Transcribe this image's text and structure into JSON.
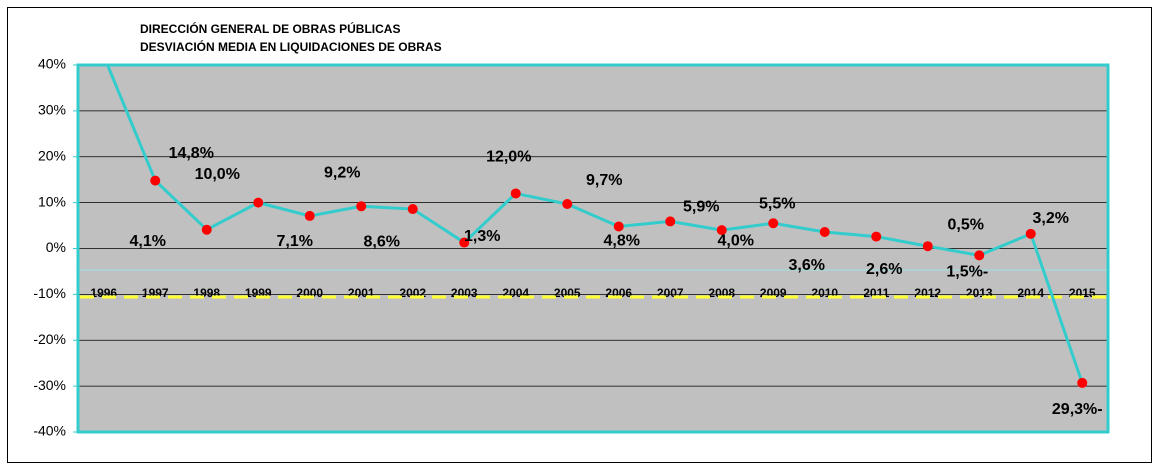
{
  "chart_data": {
    "type": "line",
    "title": "DIRECCIÓN GENERAL DE OBRAS PÚBLICAS",
    "subtitle": "DESVIACIÓN MEDIA EN LIQUIDACIONES DE OBRAS",
    "categories": [
      "1996",
      "1997",
      "1998",
      "1999",
      "2000",
      "2001",
      "2002",
      "2003",
      "2004",
      "2005",
      "2006",
      "2007",
      "2008",
      "2009",
      "2010",
      "2011",
      "2012",
      "2013",
      "2014",
      "2015"
    ],
    "series": [
      {
        "name": "Desviación media",
        "color": "#33cccc",
        "marker_color": "#ff0000",
        "values": [
          42,
          14.8,
          4.1,
          10.0,
          7.1,
          9.2,
          8.6,
          1.3,
          12.0,
          9.7,
          4.8,
          5.9,
          4.0,
          5.5,
          3.6,
          2.6,
          0.5,
          -1.5,
          3.2,
          -29.3
        ],
        "value_labels": [
          null,
          "14,8%",
          "4,1%",
          "10,0%",
          "7,1%",
          "9,2%",
          "8,6%",
          "1,3%",
          "12,0%",
          "9,7%",
          "4,8%",
          "5,9%",
          "4,0%",
          "5,5%",
          "3,6%",
          "2,6%",
          "0,5%",
          "1,5%-",
          "3,2%",
          "29,3%-"
        ]
      }
    ],
    "ylim": [
      -40,
      40
    ],
    "yticks": [
      {
        "value": -40,
        "label": "-40%"
      },
      {
        "value": -30,
        "label": "-30%"
      },
      {
        "value": -20,
        "label": "-20%"
      },
      {
        "value": -10,
        "label": "-10%"
      },
      {
        "value": 0,
        "label": "0%"
      },
      {
        "value": 10,
        "label": "10%"
      },
      {
        "value": 20,
        "label": "20%"
      },
      {
        "value": 30,
        "label": "30%"
      },
      {
        "value": 40,
        "label": "40%"
      }
    ],
    "grid": true
  }
}
